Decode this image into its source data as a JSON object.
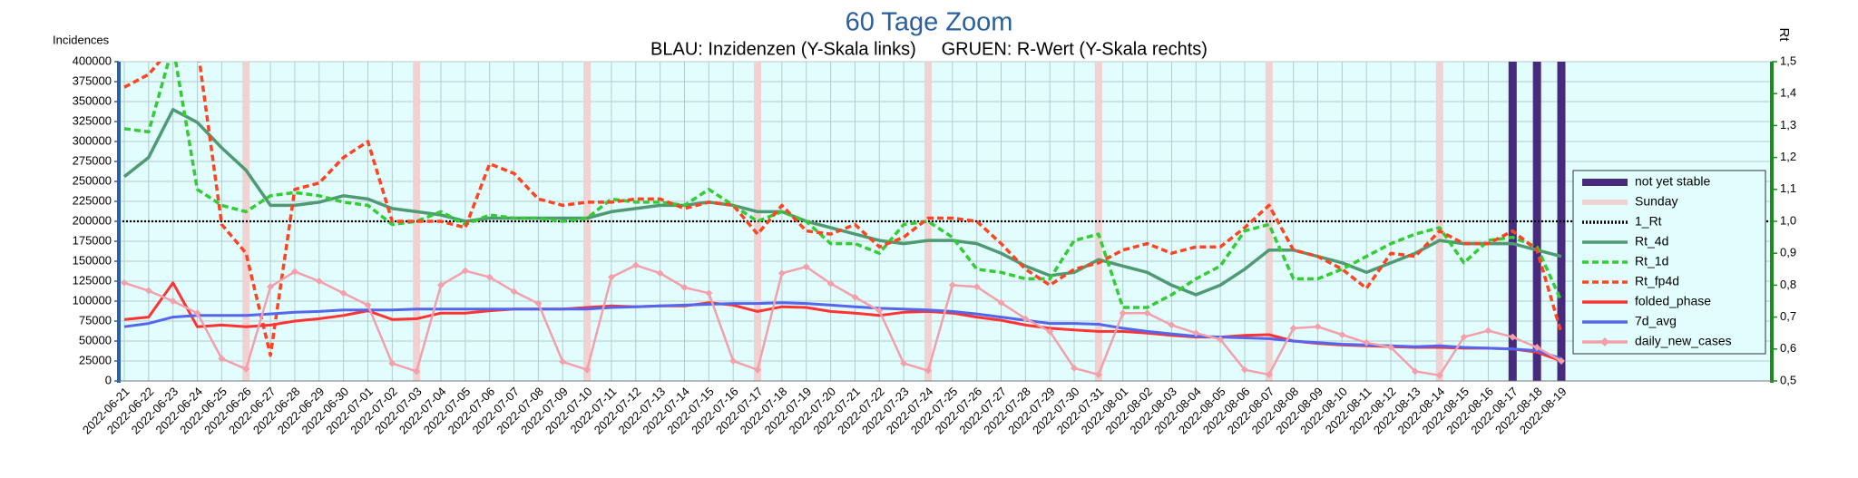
{
  "chart_data": {
    "type": "line",
    "title": "60 Tage Zoom",
    "subtitle": "BLAU: Inzidenzen (Y-Skala links)     GRUEN: R-Wert (Y-Skala rechts)",
    "y_label": "Incidences",
    "y2_label": "Rt",
    "categories": [
      "2022-06-21",
      "2022-06-22",
      "2022-06-23",
      "2022-06-24",
      "2022-06-25",
      "2022-06-26",
      "2022-06-27",
      "2022-06-28",
      "2022-06-29",
      "2022-06-30",
      "2022-07-01",
      "2022-07-02",
      "2022-07-03",
      "2022-07-04",
      "2022-07-05",
      "2022-07-06",
      "2022-07-07",
      "2022-07-08",
      "2022-07-09",
      "2022-07-10",
      "2022-07-11",
      "2022-07-12",
      "2022-07-13",
      "2022-07-14",
      "2022-07-15",
      "2022-07-16",
      "2022-07-17",
      "2022-07-18",
      "2022-07-19",
      "2022-07-20",
      "2022-07-21",
      "2022-07-22",
      "2022-07-23",
      "2022-07-24",
      "2022-07-25",
      "2022-07-26",
      "2022-07-27",
      "2022-07-28",
      "2022-07-29",
      "2022-07-30",
      "2022-07-31",
      "2022-08-01",
      "2022-08-02",
      "2022-08-03",
      "2022-08-04",
      "2022-08-05",
      "2022-08-06",
      "2022-08-07",
      "2022-08-08",
      "2022-08-09",
      "2022-08-10",
      "2022-08-11",
      "2022-08-12",
      "2022-08-13",
      "2022-08-14",
      "2022-08-15",
      "2022-08-16",
      "2022-08-17",
      "2022-08-18",
      "2022-08-19"
    ],
    "ylim": [
      0,
      400000
    ],
    "yticks": [
      0,
      25000,
      50000,
      75000,
      100000,
      125000,
      150000,
      175000,
      200000,
      225000,
      250000,
      275000,
      300000,
      325000,
      350000,
      375000,
      400000
    ],
    "y2lim": [
      0.5,
      1.5
    ],
    "y2ticks": [
      {
        "value": 0.5,
        "label": "0,5"
      },
      {
        "value": 0.6,
        "label": "0,6"
      },
      {
        "value": 0.7,
        "label": "0,7"
      },
      {
        "value": 0.8,
        "label": "0,8"
      },
      {
        "value": 0.9,
        "label": "0,9"
      },
      {
        "value": 1.0,
        "label": "1,0"
      },
      {
        "value": 1.1,
        "label": "1,1"
      },
      {
        "value": 1.2,
        "label": "1,2"
      },
      {
        "value": 1.3,
        "label": "1,3"
      },
      {
        "value": 1.4,
        "label": "1,4"
      },
      {
        "value": 1.5,
        "label": "1,5"
      }
    ],
    "grid": true,
    "legend": "right",
    "bands": [
      {
        "name": "not yet stable",
        "color": "#472a7e",
        "dates": [
          "2022-08-17",
          "2022-08-18",
          "2022-08-19"
        ]
      },
      {
        "name": "Sunday",
        "color": "#f0d2d2",
        "dates": [
          "2022-06-26",
          "2022-07-03",
          "2022-07-10",
          "2022-07-17",
          "2022-07-24",
          "2022-07-31",
          "2022-08-07",
          "2022-08-14"
        ]
      }
    ],
    "reference": {
      "name": "1_Rt",
      "value": 1.0,
      "axis": "y2",
      "color": "#000000",
      "style": "dotted"
    },
    "series": [
      {
        "name": "Rt_4d",
        "axis": "y2",
        "color": "#4f9a73",
        "style": "solid",
        "values": [
          1.14,
          1.2,
          1.35,
          1.31,
          1.23,
          1.16,
          1.05,
          1.05,
          1.06,
          1.08,
          1.07,
          1.04,
          1.03,
          1.02,
          1.0,
          1.01,
          1.01,
          1.01,
          1.01,
          1.01,
          1.03,
          1.04,
          1.05,
          1.05,
          1.06,
          1.05,
          1.03,
          1.03,
          1.0,
          0.98,
          0.96,
          0.94,
          0.93,
          0.94,
          0.94,
          0.93,
          0.9,
          0.86,
          0.83,
          0.84,
          0.88,
          0.86,
          0.84,
          0.8,
          0.77,
          0.8,
          0.85,
          0.91,
          0.91,
          0.89,
          0.87,
          0.84,
          0.87,
          0.9,
          0.94,
          0.93,
          0.93,
          0.93,
          0.91,
          0.89
        ]
      },
      {
        "name": "Rt_1d",
        "axis": "y2",
        "color": "#33cc33",
        "style": "dashed",
        "values": [
          1.29,
          1.28,
          1.55,
          1.1,
          1.05,
          1.03,
          1.08,
          1.09,
          1.08,
          1.06,
          1.05,
          0.99,
          1.0,
          1.03,
          0.99,
          1.02,
          1.01,
          1.01,
          1.0,
          1.01,
          1.07,
          1.06,
          1.06,
          1.05,
          1.1,
          1.05,
          1.0,
          1.03,
          1.0,
          0.93,
          0.93,
          0.9,
          0.99,
          1.0,
          0.95,
          0.85,
          0.84,
          0.82,
          0.82,
          0.94,
          0.96,
          0.73,
          0.73,
          0.77,
          0.82,
          0.86,
          0.97,
          0.99,
          0.82,
          0.82,
          0.85,
          0.89,
          0.93,
          0.96,
          0.98,
          0.87,
          0.94,
          0.95,
          0.92,
          0.75
        ]
      },
      {
        "name": "Rt_fp4d",
        "axis": "y2",
        "color": "#ff4422",
        "style": "dashed",
        "values": [
          1.42,
          1.46,
          1.55,
          1.55,
          0.99,
          0.9,
          0.58,
          1.1,
          1.12,
          1.2,
          1.25,
          1.0,
          1.0,
          1.0,
          0.98,
          1.18,
          1.15,
          1.07,
          1.05,
          1.06,
          1.06,
          1.07,
          1.07,
          1.04,
          1.06,
          1.05,
          0.96,
          1.05,
          0.97,
          0.96,
          0.99,
          0.92,
          0.95,
          1.01,
          1.01,
          1.0,
          0.93,
          0.85,
          0.8,
          0.85,
          0.87,
          0.91,
          0.93,
          0.9,
          0.92,
          0.92,
          0.98,
          1.05,
          0.91,
          0.89,
          0.85,
          0.79,
          0.9,
          0.89,
          0.97,
          0.93,
          0.93,
          0.97,
          0.91,
          0.65
        ]
      },
      {
        "name": "folded_phase",
        "axis": "y",
        "color": "#ff3333",
        "style": "solid",
        "values": [
          77000,
          80000,
          123000,
          68000,
          70000,
          68000,
          70000,
          75000,
          78000,
          82000,
          88000,
          77000,
          78000,
          85000,
          85000,
          88000,
          90000,
          90000,
          90000,
          92000,
          94000,
          93000,
          94000,
          94000,
          98000,
          95000,
          87000,
          93000,
          92000,
          87000,
          85000,
          82000,
          86000,
          87000,
          85000,
          80000,
          76000,
          70000,
          66000,
          64000,
          62000,
          62000,
          60000,
          57000,
          55000,
          55000,
          57000,
          58000,
          50000,
          47000,
          45000,
          44000,
          43000,
          42000,
          42000,
          41000,
          41000,
          40000,
          36000,
          25000
        ]
      },
      {
        "name": "7d_avg",
        "axis": "y",
        "color": "#5566ee",
        "style": "solid",
        "values": [
          68000,
          72000,
          80000,
          82000,
          82000,
          82000,
          84000,
          86000,
          87000,
          89000,
          89000,
          89000,
          90000,
          90000,
          90000,
          90000,
          90000,
          90000,
          90000,
          90000,
          92000,
          93000,
          94000,
          95000,
          96000,
          97000,
          97000,
          98000,
          97000,
          95000,
          93000,
          91000,
          90000,
          89000,
          87000,
          84000,
          80000,
          76000,
          72000,
          72000,
          71000,
          66000,
          62000,
          59000,
          56000,
          55000,
          54000,
          53000,
          50000,
          48000,
          46000,
          45000,
          44000,
          43000,
          44000,
          42000,
          41000,
          40000,
          38000,
          28000
        ]
      },
      {
        "name": "daily_new_cases",
        "axis": "y",
        "color": "#f4a0aa",
        "style": "solid",
        "marker": "diamond",
        "values": [
          123000,
          113000,
          100000,
          85000,
          28000,
          15000,
          118000,
          137000,
          125000,
          110000,
          95000,
          22000,
          12000,
          120000,
          138000,
          130000,
          112000,
          97000,
          24000,
          14000,
          130000,
          145000,
          135000,
          117000,
          110000,
          25000,
          14000,
          135000,
          143000,
          122000,
          105000,
          88000,
          22000,
          13000,
          120000,
          118000,
          98000,
          78000,
          62000,
          16000,
          8000,
          85000,
          85000,
          70000,
          60000,
          52000,
          14000,
          8000,
          66000,
          68000,
          58000,
          48000,
          42000,
          12000,
          7000,
          55000,
          63000,
          55000,
          42000,
          25000
        ]
      }
    ]
  }
}
